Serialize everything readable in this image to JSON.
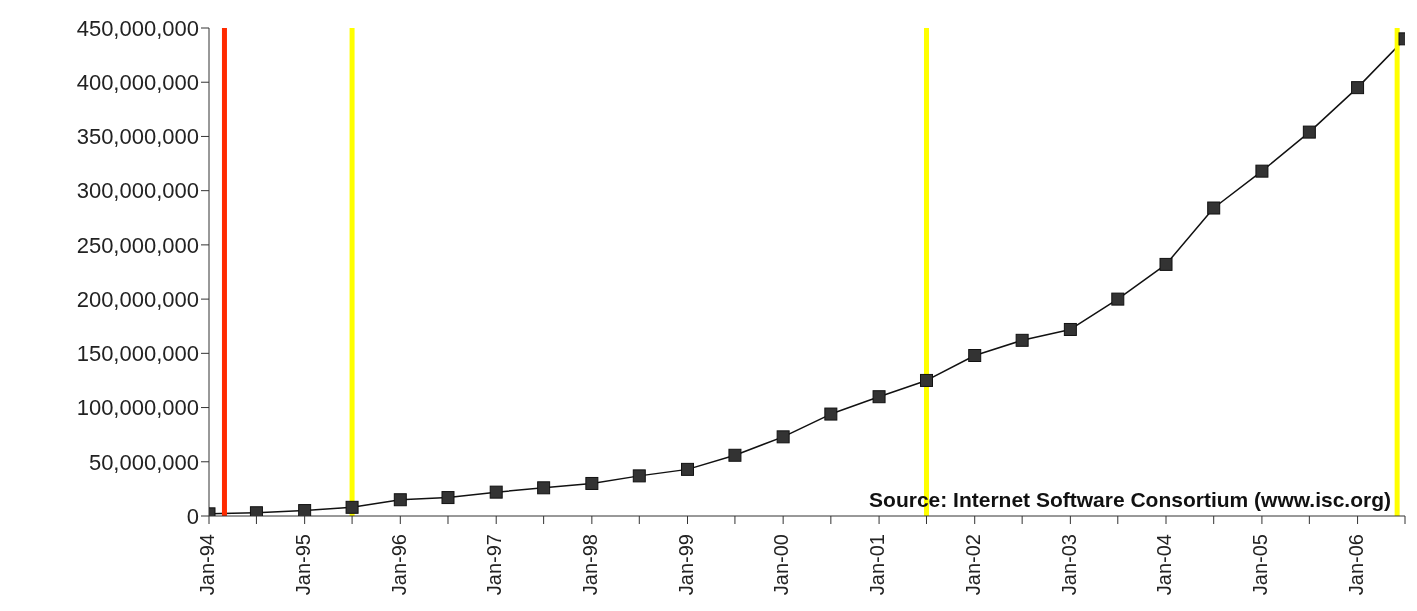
{
  "chart_data": {
    "type": "line",
    "x": [
      "1994-01",
      "1994-07",
      "1995-01",
      "1995-07",
      "1996-01",
      "1996-07",
      "1997-01",
      "1997-07",
      "1998-01",
      "1998-07",
      "1999-01",
      "1999-07",
      "2000-01",
      "2000-07",
      "2001-01",
      "2001-07",
      "2002-01",
      "2002-07",
      "2003-01",
      "2003-07",
      "2004-01",
      "2004-07",
      "2005-01",
      "2005-07",
      "2006-01",
      "2006-07"
    ],
    "series": [
      {
        "color": "#333333",
        "values": [
          2000000,
          3000000,
          5000000,
          8000000,
          15000000,
          17000000,
          22000000,
          26000000,
          30000000,
          37000000,
          43000000,
          56000000,
          73000000,
          94000000,
          110000000,
          125000000,
          148000000,
          162000000,
          172000000,
          200000000,
          232000000,
          284000000,
          318000000,
          354000000,
          395000000,
          440000000
        ]
      }
    ],
    "xlim": [
      "1994-01",
      "2006-07"
    ],
    "xticks": [
      {
        "value": "1994-01",
        "label": "Jan-94"
      },
      {
        "value": "1994-07",
        "label": null
      },
      {
        "value": "1995-01",
        "label": "Jan-95"
      },
      {
        "value": "1995-07",
        "label": null
      },
      {
        "value": "1996-01",
        "label": "Jan-96"
      },
      {
        "value": "1996-07",
        "label": null
      },
      {
        "value": "1997-01",
        "label": "Jan-97"
      },
      {
        "value": "1997-07",
        "label": null
      },
      {
        "value": "1998-01",
        "label": "Jan-98"
      },
      {
        "value": "1998-07",
        "label": null
      },
      {
        "value": "1999-01",
        "label": "Jan-99"
      },
      {
        "value": "1999-07",
        "label": null
      },
      {
        "value": "2000-01",
        "label": "Jan-00"
      },
      {
        "value": "2000-07",
        "label": null
      },
      {
        "value": "2001-01",
        "label": "Jan-01"
      },
      {
        "value": "2001-07",
        "label": null
      },
      {
        "value": "2002-01",
        "label": "Jan-02"
      },
      {
        "value": "2002-07",
        "label": null
      },
      {
        "value": "2003-01",
        "label": "Jan-03"
      },
      {
        "value": "2003-07",
        "label": null
      },
      {
        "value": "2004-01",
        "label": "Jan-04"
      },
      {
        "value": "2004-07",
        "label": null
      },
      {
        "value": "2005-01",
        "label": "Jan-05"
      },
      {
        "value": "2005-07",
        "label": null
      },
      {
        "value": "2006-01",
        "label": "Jan-06"
      },
      {
        "value": "2006-07",
        "label": null
      }
    ],
    "ylim": [
      0,
      450000000
    ],
    "yticks": [
      {
        "value": 0,
        "label": "0"
      },
      {
        "value": 50000000,
        "label": "50,000,000"
      },
      {
        "value": 100000000,
        "label": "100,000,000"
      },
      {
        "value": 150000000,
        "label": "150,000,000"
      },
      {
        "value": 200000000,
        "label": "200,000,000"
      },
      {
        "value": 250000000,
        "label": "250,000,000"
      },
      {
        "value": 300000000,
        "label": "300,000,000"
      },
      {
        "value": 350000000,
        "label": "350,000,000"
      },
      {
        "value": 400000000,
        "label": "400,000,000"
      },
      {
        "value": 450000000,
        "label": "450,000,000"
      }
    ],
    "ref_lines": [
      {
        "axis": "x",
        "value": "1994-03",
        "color": "#ff2a00"
      },
      {
        "axis": "x",
        "value": "1995-07",
        "color": "#ffff00"
      },
      {
        "axis": "x",
        "value": "2001-07",
        "color": "#ffff00"
      },
      {
        "axis": "x",
        "value": "2006-06",
        "color": "#ffff00"
      }
    ],
    "annotations": [
      "Source: Internet Software Consortium (www.isc.org)"
    ],
    "marker": "square",
    "line_style": "solid"
  }
}
